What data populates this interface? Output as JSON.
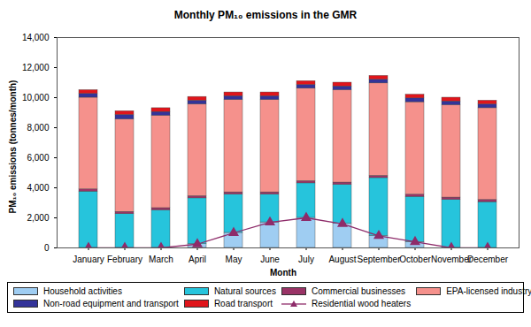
{
  "chart_data": {
    "type": "bar",
    "title": "Monthly PM₁₀ emissions in the GMR",
    "x_label": "Month",
    "y_label": "PM₁₀ emissions (tonnes/month)",
    "categories": [
      "January",
      "February",
      "March",
      "April",
      "May",
      "June",
      "July",
      "August",
      "September",
      "October",
      "November",
      "December"
    ],
    "stacked": true,
    "grid": false,
    "legend": "bottom",
    "ylim": [
      0,
      14000
    ],
    "yticks": [
      0,
      {
        "value": 2000,
        "label": "2,000"
      },
      {
        "value": 4000,
        "label": "4,000"
      },
      {
        "value": 6000,
        "label": "6,000"
      },
      {
        "value": 8000,
        "label": "8,000"
      },
      {
        "value": 10000,
        "label": "10,000"
      },
      {
        "value": 12000,
        "label": "12,000"
      },
      {
        "value": 14000,
        "label": "14,000"
      }
    ],
    "series": [
      {
        "name": "Household activities",
        "type": "bar",
        "color": "#9fcdf2",
        "values": [
          0,
          0,
          0,
          250,
          1000,
          1700,
          2000,
          1600,
          800,
          400,
          0,
          0
        ]
      },
      {
        "name": "Natural sources",
        "type": "bar",
        "color": "#26c4dc",
        "values": [
          3750,
          2250,
          2500,
          3050,
          2550,
          1850,
          2300,
          2600,
          3850,
          3000,
          3200,
          3050
        ]
      },
      {
        "name": "Commercial businesses",
        "type": "bar",
        "color": "#993366",
        "values": [
          150,
          150,
          150,
          150,
          150,
          150,
          150,
          150,
          150,
          150,
          150,
          150
        ]
      },
      {
        "name": "EPA-licensed industry",
        "type": "bar",
        "color": "#f5918c",
        "values": [
          6100,
          6150,
          6150,
          6100,
          6150,
          6150,
          6150,
          6150,
          6150,
          6150,
          6150,
          6100
        ]
      },
      {
        "name": "Non-road equipment and transport",
        "type": "bar",
        "color": "#333399",
        "values": [
          250,
          300,
          250,
          250,
          250,
          250,
          250,
          250,
          250,
          250,
          250,
          250
        ]
      },
      {
        "name": "Road transport",
        "type": "bar",
        "color": "#e0151b",
        "values": [
          250,
          250,
          250,
          250,
          250,
          250,
          250,
          250,
          250,
          250,
          250,
          250
        ]
      },
      {
        "name": "Residential wood heaters",
        "type": "line",
        "marker": "triangle",
        "color": "#8e2c6a",
        "values": [
          0,
          0,
          0,
          250,
          1000,
          1700,
          2000,
          1600,
          800,
          400,
          0,
          0
        ]
      }
    ]
  }
}
